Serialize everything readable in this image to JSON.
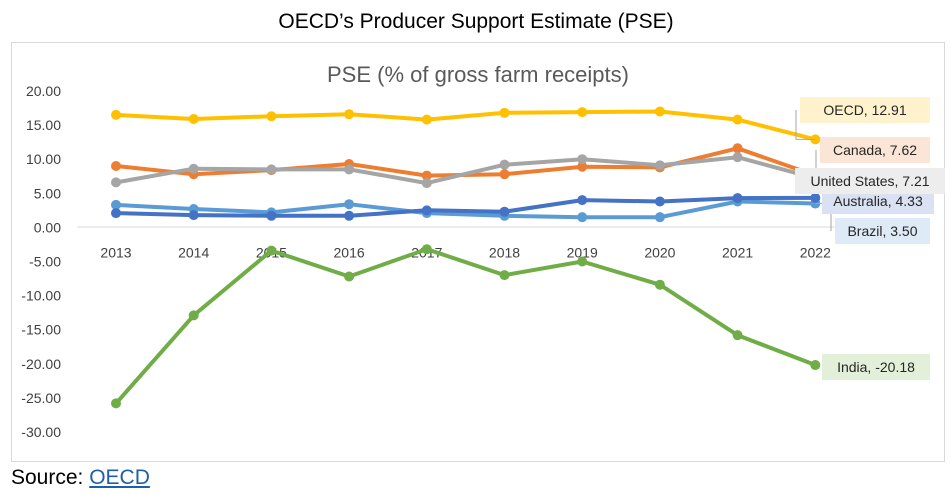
{
  "page": {
    "title": "OECD’s Producer Support Estimate (PSE)",
    "source_prefix": "Source: ",
    "source_link": "OECD"
  },
  "chart_data": {
    "type": "line",
    "title": "PSE (% of gross farm receipts)",
    "xlabel": "",
    "ylabel": "",
    "x": [
      "2013",
      "2014",
      "2015",
      "2016",
      "2017",
      "2018",
      "2019",
      "2020",
      "2021",
      "2022"
    ],
    "ylim": [
      -30,
      20
    ],
    "yticks": [
      "20.00",
      "15.00",
      "10.00",
      "5.00",
      "0.00",
      "-5.00",
      "-10.00",
      "-15.00",
      "-20.00",
      "-25.00",
      "-30.00"
    ],
    "grid": false,
    "series": [
      {
        "name": "India",
        "color": "#70ad47",
        "label": "India, -20.18",
        "label_bg": "#e2efd9",
        "values": [
          -25.8,
          -12.9,
          -3.4,
          -7.2,
          -3.2,
          -7.0,
          -5.0,
          -8.4,
          -15.8,
          -20.18
        ]
      },
      {
        "name": "Brazil",
        "color": "#5b9bd5",
        "label": "Brazil, 3.50",
        "label_bg": "#deebf7",
        "values": [
          3.3,
          2.7,
          2.2,
          3.4,
          2.1,
          1.7,
          1.5,
          1.5,
          3.8,
          3.5
        ]
      },
      {
        "name": "Australia",
        "color": "#4472c4",
        "label": "Australia, 4.33",
        "label_bg": "#d9e1f2",
        "values": [
          2.1,
          1.8,
          1.7,
          1.7,
          2.5,
          2.3,
          4.0,
          3.8,
          4.3,
          4.33
        ]
      },
      {
        "name": "Canada",
        "color": "#ed7d31",
        "label": "Canada, 7.62",
        "label_bg": "#fbe5d6",
        "values": [
          9.0,
          7.8,
          8.4,
          9.3,
          7.6,
          7.8,
          8.9,
          8.8,
          11.6,
          7.62
        ]
      },
      {
        "name": "United States",
        "color": "#a5a5a5",
        "label": "United States, 7.21",
        "label_bg": "#ededed",
        "values": [
          6.6,
          8.6,
          8.5,
          8.5,
          6.5,
          9.2,
          10.0,
          9.1,
          10.3,
          7.21
        ]
      },
      {
        "name": "OECD",
        "color": "#ffc000",
        "label": "OECD, 12.91",
        "label_bg": "#fff2cc",
        "values": [
          16.5,
          15.9,
          16.3,
          16.6,
          15.8,
          16.8,
          16.9,
          17.0,
          15.8,
          12.91
        ]
      }
    ]
  }
}
